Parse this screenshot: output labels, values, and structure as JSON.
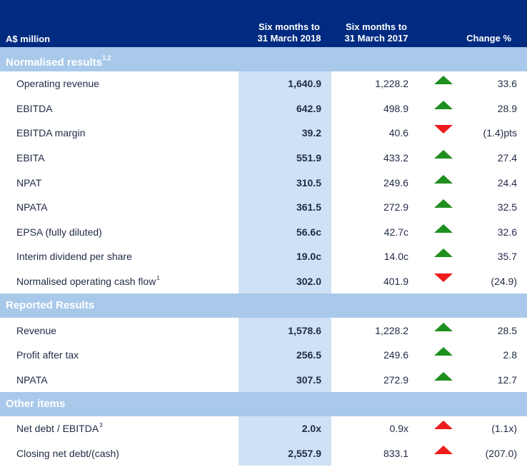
{
  "header": {
    "label": "A$ million",
    "col1_line1": "Six months to",
    "col1_line2": "31 March 2018",
    "col2_line1": "Six months to",
    "col2_line2": "31 March 2017",
    "col3": "Change %"
  },
  "colors": {
    "header_bg": "#002b80",
    "section_bg": "#a9c9ea",
    "highlight_col": "#cfe2f5",
    "up_green": "#1f8f1f",
    "red": "#ee1c1c"
  },
  "sections": [
    {
      "title": "Normalised results",
      "title_sup": "1,2",
      "rows": [
        {
          "label": "Operating revenue",
          "sup": "",
          "v2018": "1,640.9",
          "v2017": "1,228.2",
          "arrow": "up-green-icon",
          "change": "33.6"
        },
        {
          "label": "EBITDA",
          "sup": "",
          "v2018": "642.9",
          "v2017": "498.9",
          "arrow": "up-green-icon",
          "change": "28.9"
        },
        {
          "label": "EBITDA margin",
          "sup": "",
          "v2018": "39.2",
          "v2017": "40.6",
          "arrow": "down-red-icon",
          "change": "(1.4)pts"
        },
        {
          "label": "EBITA",
          "sup": "",
          "v2018": "551.9",
          "v2017": "433.2",
          "arrow": "up-green-icon",
          "change": "27.4"
        },
        {
          "label": "NPAT",
          "sup": "",
          "v2018": "310.5",
          "v2017": "249.6",
          "arrow": "up-green-icon",
          "change": "24.4"
        },
        {
          "label": "NPATA",
          "sup": "",
          "v2018": "361.5",
          "v2017": "272.9",
          "arrow": "up-green-icon",
          "change": "32.5"
        },
        {
          "label": "EPSA (fully diluted)",
          "sup": "",
          "v2018": "56.6c",
          "v2017": "42.7c",
          "arrow": "up-green-icon",
          "change": "32.6"
        },
        {
          "label": "Interim dividend per share",
          "sup": "",
          "v2018": "19.0c",
          "v2017": "14.0c",
          "arrow": "up-green-icon",
          "change": "35.7"
        },
        {
          "label": "Normalised operating cash flow",
          "sup": "1",
          "v2018": "302.0",
          "v2017": "401.9",
          "arrow": "down-red-icon",
          "change": "(24.9)"
        }
      ]
    },
    {
      "title": "Reported Results",
      "title_sup": "",
      "rows": [
        {
          "label": "Revenue",
          "sup": "",
          "v2018": "1,578.6",
          "v2017": "1,228.2",
          "arrow": "up-green-icon",
          "change": "28.5"
        },
        {
          "label": "Profit after tax",
          "sup": "",
          "v2018": "256.5",
          "v2017": "249.6",
          "arrow": "up-green-icon",
          "change": "2.8"
        },
        {
          "label": "NPATA",
          "sup": "",
          "v2018": "307.5",
          "v2017": "272.9",
          "arrow": "up-green-icon",
          "change": "12.7"
        }
      ]
    },
    {
      "title": "Other items",
      "title_sup": "",
      "rows": [
        {
          "label": "Net debt / EBITDA",
          "sup": "3",
          "v2018": "2.0x",
          "v2017": "0.9x",
          "arrow": "up-red-icon",
          "change": "(1.1x)"
        },
        {
          "label": "Closing net debt/(cash)",
          "sup": "",
          "v2018": "2,557.9",
          "v2017": "833.1",
          "arrow": "up-red-icon",
          "change": "(207.0)"
        }
      ]
    }
  ]
}
